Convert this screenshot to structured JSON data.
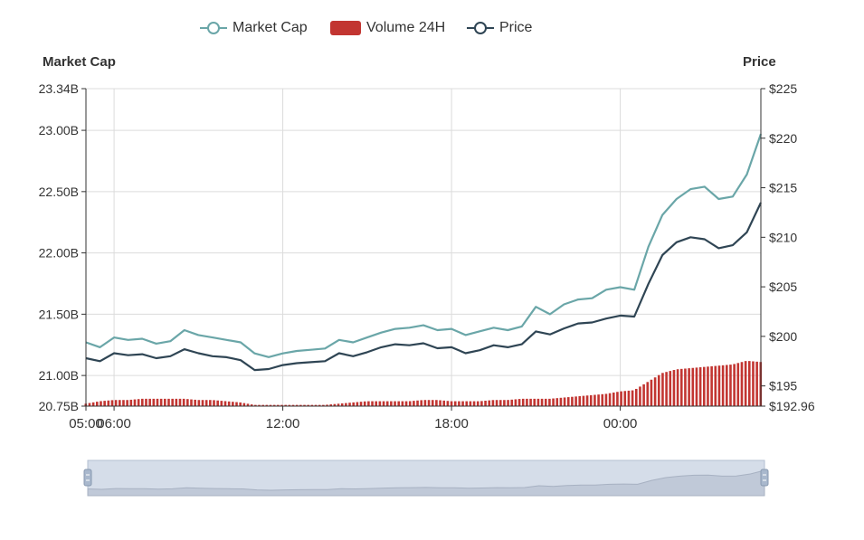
{
  "legend": {
    "items": [
      {
        "label": "Market Cap",
        "color": "#6aa6a8",
        "icon": "hollow-circle-line-icon"
      },
      {
        "label": "Volume 24H",
        "color": "#c23531",
        "icon": "filled-rect-icon"
      },
      {
        "label": "Price",
        "color": "#2f4554",
        "icon": "hollow-circle-line-icon"
      }
    ]
  },
  "axes": {
    "left_title": "Market Cap",
    "right_title": "Price"
  },
  "chart_data": {
    "type": "line",
    "x": [
      "05:00",
      "05:30",
      "06:00",
      "06:30",
      "07:00",
      "07:30",
      "08:00",
      "08:30",
      "09:00",
      "09:30",
      "10:00",
      "10:30",
      "11:00",
      "11:30",
      "12:00",
      "12:30",
      "13:00",
      "13:30",
      "14:00",
      "14:30",
      "15:00",
      "15:30",
      "16:00",
      "16:30",
      "17:00",
      "17:30",
      "18:00",
      "18:30",
      "19:00",
      "19:30",
      "20:00",
      "20:30",
      "21:00",
      "21:30",
      "22:00",
      "22:30",
      "23:00",
      "23:30",
      "00:00",
      "00:30",
      "01:00",
      "01:30",
      "02:00",
      "02:30",
      "03:00",
      "03:30",
      "04:00",
      "04:30",
      "05:00"
    ],
    "x_ticks": [
      "06:00",
      "12:00",
      "18:00",
      "00:00",
      "05:00"
    ],
    "series": [
      {
        "name": "Market Cap",
        "axis": "left",
        "color": "#6aa6a8",
        "values": [
          21.27,
          21.23,
          21.31,
          21.29,
          21.3,
          21.26,
          21.28,
          21.37,
          21.33,
          21.31,
          21.29,
          21.27,
          21.18,
          21.15,
          21.18,
          21.2,
          21.21,
          21.22,
          21.29,
          21.27,
          21.31,
          21.35,
          21.38,
          21.39,
          21.41,
          21.37,
          21.38,
          21.33,
          21.36,
          21.39,
          21.37,
          21.4,
          21.56,
          21.5,
          21.58,
          21.62,
          21.63,
          21.7,
          21.72,
          21.7,
          22.05,
          22.31,
          22.44,
          22.52,
          22.54,
          22.44,
          22.46,
          22.64,
          22.97
        ]
      },
      {
        "name": "Price",
        "axis": "right",
        "color": "#2f4554",
        "values": [
          197.8,
          197.5,
          198.3,
          198.1,
          198.2,
          197.8,
          198.0,
          198.7,
          198.3,
          198.0,
          197.9,
          197.6,
          196.6,
          196.7,
          197.1,
          197.3,
          197.4,
          197.5,
          198.3,
          198.0,
          198.4,
          198.9,
          199.2,
          199.1,
          199.3,
          198.8,
          198.9,
          198.3,
          198.6,
          199.1,
          198.9,
          199.2,
          200.5,
          200.2,
          200.8,
          201.3,
          201.4,
          201.8,
          202.1,
          202.0,
          205.3,
          208.2,
          209.5,
          210.0,
          209.8,
          208.9,
          209.2,
          210.5,
          213.5
        ]
      },
      {
        "name": "Volume 24H",
        "axis": "left",
        "type": "bar",
        "color": "#c23531",
        "values": [
          20.77,
          20.79,
          20.8,
          20.8,
          20.81,
          20.81,
          20.81,
          20.81,
          20.8,
          20.8,
          20.79,
          20.78,
          20.76,
          20.76,
          20.76,
          20.76,
          20.76,
          20.76,
          20.77,
          20.78,
          20.79,
          20.79,
          20.79,
          20.79,
          20.8,
          20.8,
          20.79,
          20.79,
          20.79,
          20.8,
          20.8,
          20.81,
          20.81,
          20.81,
          20.82,
          20.83,
          20.84,
          20.85,
          20.87,
          20.88,
          20.95,
          21.02,
          21.05,
          21.06,
          21.07,
          21.08,
          21.09,
          21.12,
          21.11
        ]
      }
    ],
    "left_axis": {
      "min": 20.75,
      "max": 23.34,
      "ticks": [
        "20.75B",
        "21.00B",
        "21.50B",
        "22.00B",
        "22.50B",
        "23.00B",
        "23.34B"
      ],
      "tick_values": [
        20.75,
        21.0,
        21.5,
        22.0,
        22.5,
        23.0,
        23.34
      ]
    },
    "right_axis": {
      "min": 192.96,
      "max": 225,
      "ticks": [
        "$192.96",
        "$195",
        "$200",
        "$205",
        "$210",
        "$215",
        "$220",
        "$225"
      ],
      "tick_values": [
        192.96,
        195,
        200,
        205,
        210,
        215,
        220,
        225
      ]
    },
    "grid": true,
    "legend_position": "top-center"
  }
}
